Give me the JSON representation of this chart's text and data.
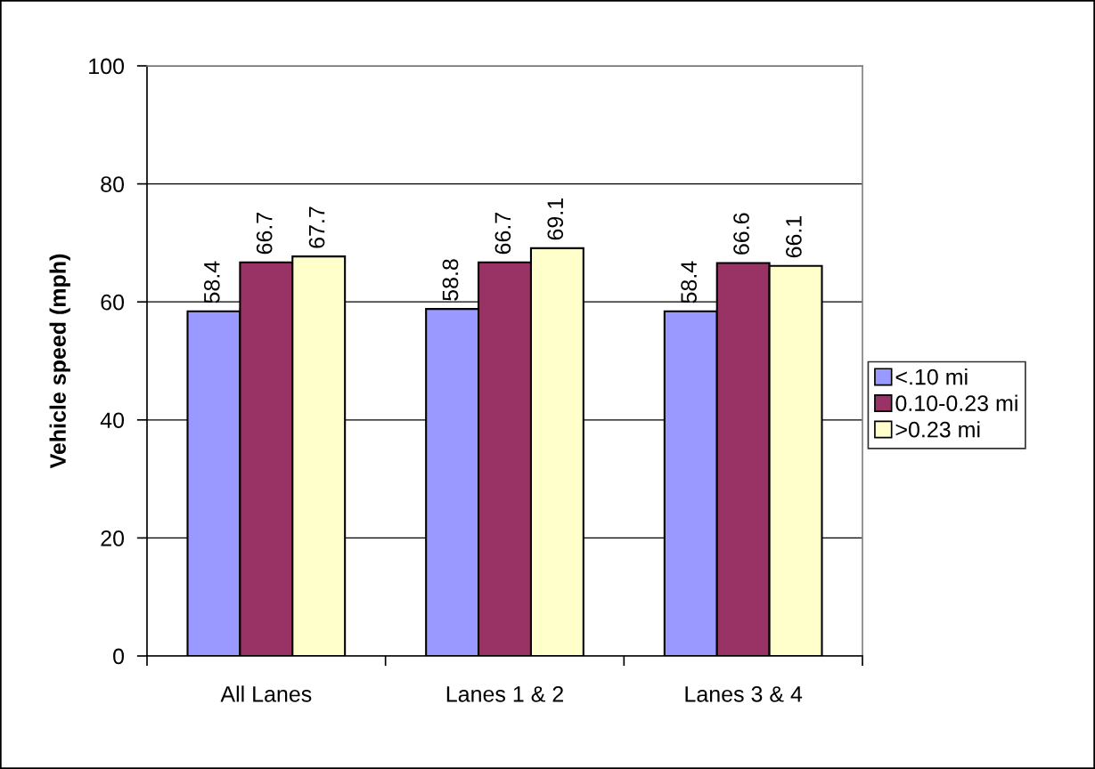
{
  "chart_data": {
    "type": "bar",
    "ylabel": "Vehicle speed (mph)",
    "categories": [
      "All Lanes",
      "Lanes 1 & 2",
      "Lanes 3 & 4"
    ],
    "series": [
      {
        "name": "<.10 mi",
        "color": "#9999ff",
        "values": [
          58.4,
          58.8,
          58.4
        ]
      },
      {
        "name": "0.10-0.23 mi",
        "color": "#993366",
        "values": [
          66.7,
          66.7,
          66.6
        ]
      },
      {
        "name": ">0.23 mi",
        "color": "#ffffcc",
        "values": [
          67.7,
          69.1,
          66.1
        ]
      }
    ],
    "ylim": [
      0,
      100
    ],
    "yticks": [
      0,
      20,
      40,
      60,
      80,
      100
    ],
    "grid": "y",
    "legend": "right",
    "data_labels": true
  }
}
